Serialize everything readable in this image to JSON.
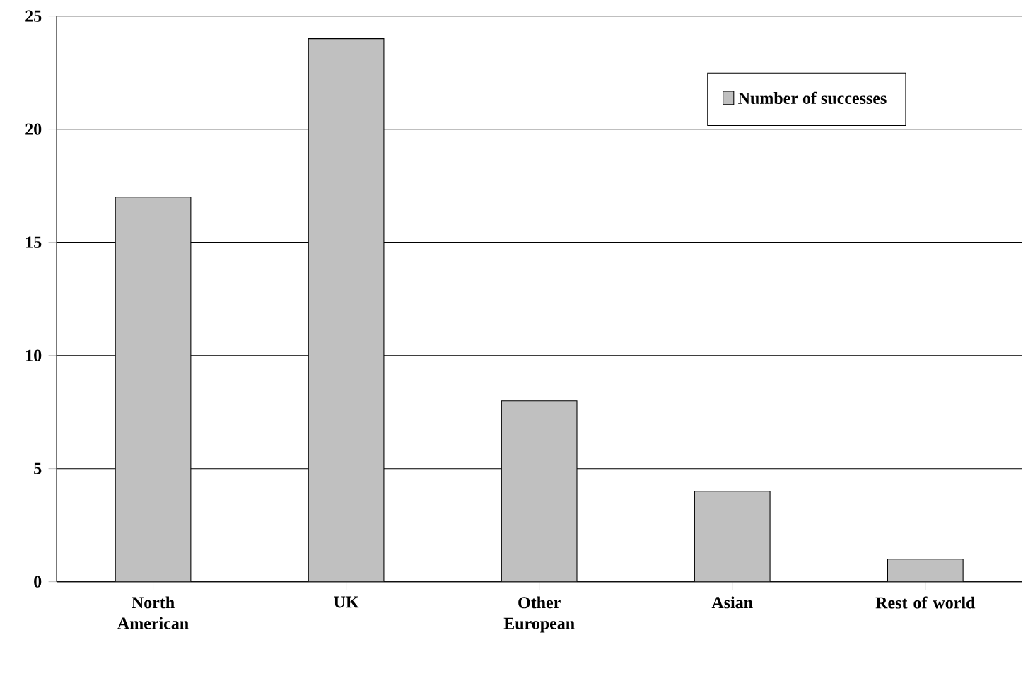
{
  "chart_data": {
    "type": "bar",
    "categories": [
      "North American",
      "UK",
      "Other European",
      "Asian",
      "Rest of world"
    ],
    "series": [
      {
        "name": "Number of successes",
        "color": "#c0c0c0",
        "values": [
          17,
          24,
          8,
          4,
          1
        ]
      }
    ],
    "ylim": [
      0,
      25
    ],
    "yticks": [
      0,
      5,
      10,
      15,
      20,
      25
    ],
    "grid": "y",
    "legend": "top right"
  }
}
